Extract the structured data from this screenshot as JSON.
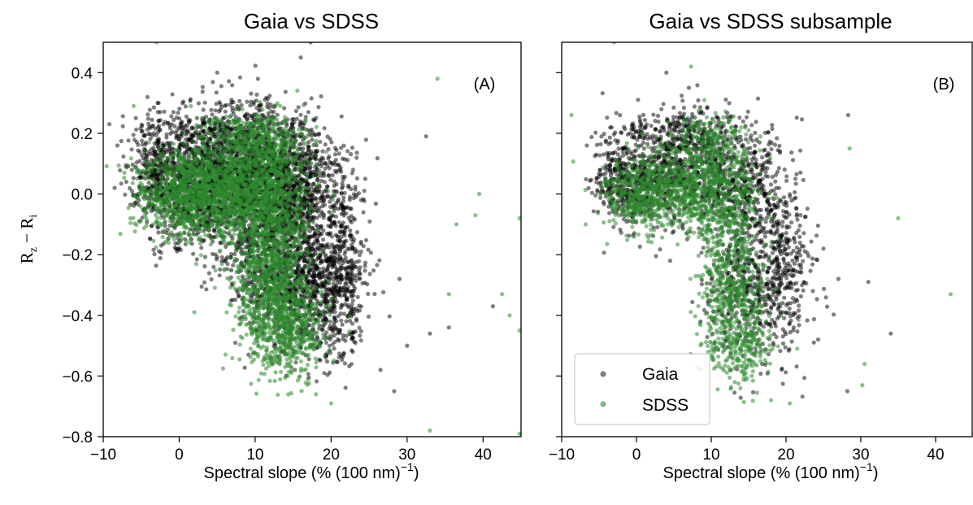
{
  "chart_data": [
    {
      "type": "scatter",
      "title": "Gaia vs SDSS",
      "panel_label": "(A)",
      "xlabel": "Spectral slope (% (100 nm)",
      "xlabel_sup": "−1",
      "xlabel_end": ")",
      "ylabel_main": "R",
      "ylabel_sub1": "z",
      "ylabel_mid": " − R",
      "ylabel_sub2": "i",
      "xlim": [
        -10,
        45
      ],
      "ylim": [
        -0.8,
        0.5
      ],
      "xticks": [
        -10,
        0,
        10,
        20,
        30,
        40
      ],
      "xtick_labels": [
        "−10",
        "0",
        "10",
        "20",
        "30",
        "40"
      ],
      "yticks": [
        -0.8,
        -0.6,
        -0.4,
        -0.2,
        0.0,
        0.2,
        0.4
      ],
      "ytick_labels": [
        "−0.8",
        "−0.6",
        "−0.4",
        "−0.2",
        "0.0",
        "0.2",
        "0.4"
      ],
      "series": [
        {
          "name": "Gaia",
          "color": "#000000",
          "opacity": 0.5,
          "cloud": [
            {
              "x": 2,
              "y": 0.02,
              "sx": 3.6,
              "sy": 0.09,
              "n": 900
            },
            {
              "x": 9,
              "y": 0.06,
              "sx": 4.2,
              "sy": 0.11,
              "n": 900
            },
            {
              "x": 15,
              "y": 0.04,
              "sx": 3.6,
              "sy": 0.1,
              "n": 700
            },
            {
              "x": 12,
              "y": -0.2,
              "sx": 3.2,
              "sy": 0.12,
              "n": 600
            },
            {
              "x": 17,
              "y": -0.3,
              "sx": 3.0,
              "sy": 0.12,
              "n": 600
            },
            {
              "x": 21,
              "y": -0.25,
              "sx": 2.0,
              "sy": 0.15,
              "n": 450
            },
            {
              "x": 6,
              "y": 0.2,
              "sx": 5.0,
              "sy": 0.06,
              "n": 400
            },
            {
              "x": -3,
              "y": 0.1,
              "sx": 1.6,
              "sy": 0.08,
              "n": 220
            }
          ],
          "outliers": [
            [
              -9.2,
              0.23
            ],
            [
              -8.5,
              0.02
            ],
            [
              28.3,
              -0.65
            ],
            [
              33.0,
              -0.46
            ],
            [
              32.5,
              0.19
            ],
            [
              35.5,
              -0.44
            ],
            [
              41.3,
              -0.37
            ],
            [
              29.0,
              -0.28
            ],
            [
              17.3,
              0.5
            ],
            [
              16.0,
              0.45
            ],
            [
              5.0,
              0.4
            ],
            [
              30.0,
              -0.5
            ],
            [
              26.5,
              -0.58
            ],
            [
              24.5,
              0.05
            ]
          ]
        },
        {
          "name": "SDSS",
          "color": "#2e8b2e",
          "opacity": 0.55,
          "cloud": [
            {
              "x": 1,
              "y": 0.0,
              "sx": 3.2,
              "sy": 0.07,
              "n": 800
            },
            {
              "x": 7,
              "y": 0.02,
              "sx": 3.4,
              "sy": 0.09,
              "n": 800
            },
            {
              "x": 12,
              "y": 0.0,
              "sx": 2.8,
              "sy": 0.1,
              "n": 600
            },
            {
              "x": 12,
              "y": -0.25,
              "sx": 2.4,
              "sy": 0.12,
              "n": 800
            },
            {
              "x": 14,
              "y": -0.45,
              "sx": 2.6,
              "sy": 0.08,
              "n": 500
            },
            {
              "x": 10,
              "y": 0.18,
              "sx": 3.0,
              "sy": 0.05,
              "n": 300
            }
          ],
          "outliers": [
            [
              -3.0,
              0.5
            ],
            [
              -6.0,
              0.29
            ],
            [
              33.0,
              -0.78
            ],
            [
              34.0,
              0.38
            ],
            [
              39.5,
              0.0
            ],
            [
              42.5,
              -0.33
            ],
            [
              44.8,
              -0.08
            ],
            [
              44.8,
              -0.45
            ],
            [
              44.8,
              -0.79
            ],
            [
              39.0,
              -0.07
            ],
            [
              35.5,
              -0.33
            ],
            [
              20.0,
              -0.69
            ],
            [
              18.0,
              -0.66
            ],
            [
              2.0,
              -0.39
            ],
            [
              -4.0,
              0.17
            ],
            [
              -2.0,
              -0.12
            ],
            [
              36.5,
              -0.1
            ],
            [
              43.5,
              -0.4
            ]
          ]
        }
      ]
    },
    {
      "type": "scatter",
      "title": "Gaia vs SDSS subsample",
      "panel_label": "(B)",
      "xlabel": "Spectral slope (% (100 nm)",
      "xlabel_sup": "−1",
      "xlabel_end": ")",
      "xlim": [
        -10,
        45
      ],
      "ylim": [
        -0.8,
        0.5
      ],
      "xticks": [
        -10,
        0,
        10,
        20,
        30,
        40
      ],
      "xtick_labels": [
        "−10",
        "0",
        "10",
        "20",
        "30",
        "40"
      ],
      "yticks": [
        -0.8,
        -0.6,
        -0.4,
        -0.2,
        0.0,
        0.2,
        0.4
      ],
      "legend": {
        "position": "lower-left",
        "entries": [
          "Gaia",
          "SDSS"
        ]
      },
      "series": [
        {
          "name": "Gaia",
          "color": "#000000",
          "opacity": 0.5,
          "cloud": [
            {
              "x": 1,
              "y": 0.04,
              "sx": 3.0,
              "sy": 0.07,
              "n": 450
            },
            {
              "x": 8,
              "y": 0.08,
              "sx": 3.6,
              "sy": 0.09,
              "n": 450
            },
            {
              "x": 15,
              "y": 0.02,
              "sx": 3.0,
              "sy": 0.1,
              "n": 380
            },
            {
              "x": 15,
              "y": -0.3,
              "sx": 2.8,
              "sy": 0.13,
              "n": 420
            },
            {
              "x": 20,
              "y": -0.25,
              "sx": 1.8,
              "sy": 0.14,
              "n": 260
            },
            {
              "x": 6,
              "y": 0.2,
              "sx": 4.2,
              "sy": 0.04,
              "n": 220
            },
            {
              "x": -3,
              "y": 0.08,
              "sx": 1.4,
              "sy": 0.07,
              "n": 120
            }
          ],
          "outliers": [
            [
              28.3,
              0.26
            ],
            [
              34.0,
              -0.46
            ],
            [
              28.2,
              -0.65
            ],
            [
              31.0,
              -0.29
            ],
            [
              25.0,
              -0.18
            ],
            [
              4.0,
              0.4
            ],
            [
              7.0,
              0.35
            ],
            [
              27.0,
              -0.28
            ]
          ]
        },
        {
          "name": "SDSS",
          "color": "#2e8b2e",
          "opacity": 0.55,
          "cloud": [
            {
              "x": 1,
              "y": 0.0,
              "sx": 2.8,
              "sy": 0.06,
              "n": 450
            },
            {
              "x": 7,
              "y": 0.03,
              "sx": 3.0,
              "sy": 0.08,
              "n": 450
            },
            {
              "x": 12,
              "y": 0.0,
              "sx": 2.2,
              "sy": 0.09,
              "n": 320
            },
            {
              "x": 13,
              "y": -0.3,
              "sx": 2.2,
              "sy": 0.12,
              "n": 450
            },
            {
              "x": 14,
              "y": -0.5,
              "sx": 2.2,
              "sy": 0.06,
              "n": 220
            },
            {
              "x": 10,
              "y": 0.17,
              "sx": 2.6,
              "sy": 0.05,
              "n": 150
            }
          ],
          "outliers": [
            [
              -8.7,
              0.26
            ],
            [
              -3.0,
              0.5
            ],
            [
              7.3,
              0.42
            ],
            [
              35.0,
              -0.08
            ],
            [
              42.0,
              -0.33
            ],
            [
              30.5,
              -0.56
            ],
            [
              30.2,
              -0.63
            ],
            [
              20.5,
              -0.69
            ],
            [
              18.0,
              -0.68
            ],
            [
              28.5,
              0.15
            ],
            [
              -4.0,
              0.0
            ]
          ]
        }
      ]
    }
  ]
}
